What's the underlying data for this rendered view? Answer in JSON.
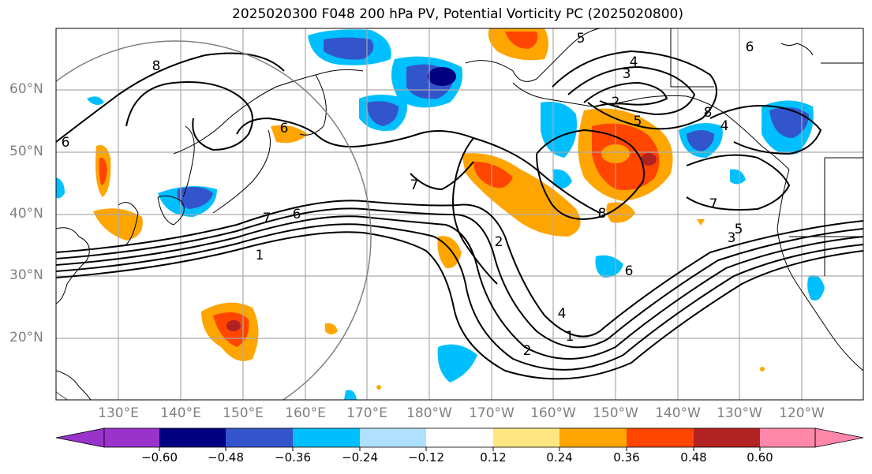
{
  "title": "2025020300 F048 200 hPa PV, Potential Vorticity PC (2025020800)",
  "lat_labels": [
    "60°N",
    "50°N",
    "40°N",
    "30°N",
    "20°N"
  ],
  "lon_labels": [
    "130°E",
    "140°E",
    "150°E",
    "160°E",
    "170°E",
    "180°W",
    "170°W",
    "160°W",
    "150°W",
    "140°W",
    "130°W",
    "120°W"
  ],
  "colorbar": {
    "ticks": [
      "−0.60",
      "−0.48",
      "−0.36",
      "−0.24",
      "−0.12",
      "0.12",
      "0.24",
      "0.36",
      "0.48",
      "0.60"
    ],
    "colors": [
      "#9933cc",
      "#000080",
      "#3355cc",
      "#00bfff",
      "#b0e0ff",
      "#ffffff",
      "#ffe680",
      "#ffa500",
      "#ff4500",
      "#b22222",
      "#ff88aa"
    ]
  },
  "contour_labels": [
    "8",
    "6",
    "7",
    "6",
    "1",
    "7",
    "2",
    "4",
    "2",
    "1",
    "8",
    "6",
    "5",
    "3",
    "4",
    "2",
    "5",
    "7",
    "5",
    "3",
    "4",
    "6",
    "8",
    "6"
  ]
}
